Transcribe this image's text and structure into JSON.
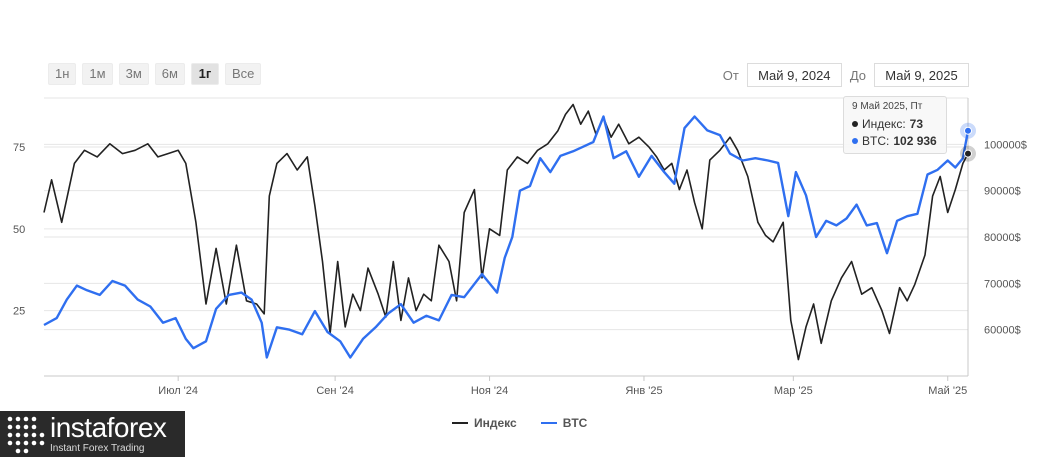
{
  "range_buttons": [
    {
      "label": "1н",
      "active": false
    },
    {
      "label": "1м",
      "active": false
    },
    {
      "label": "3м",
      "active": false
    },
    {
      "label": "6м",
      "active": false
    },
    {
      "label": "1г",
      "active": true
    },
    {
      "label": "Все",
      "active": false
    }
  ],
  "date_range": {
    "from_label": "От",
    "from_value": "Май 9, 2024",
    "to_label": "До",
    "to_value": "Май 9, 2025"
  },
  "tooltip": {
    "date": "9 Май 2025, Пт",
    "index_label": "Индекс:",
    "index_value": "73",
    "btc_label": "BTC:",
    "btc_value": "102 936"
  },
  "legend": {
    "index": "Индекс",
    "btc": "BTC"
  },
  "logo": {
    "name": "instaforex",
    "tagline": "Instant Forex Trading"
  },
  "colors": {
    "index": "#222222",
    "btc": "#2f6ff0",
    "grid": "#e6e6e6"
  },
  "chart_data": {
    "type": "line",
    "x_start": "2024-05-09",
    "x_end": "2025-05-09",
    "x_ticks": [
      {
        "date": "2024-07-01",
        "label": "Июл '24"
      },
      {
        "date": "2024-09-01",
        "label": "Сен '24"
      },
      {
        "date": "2024-11-01",
        "label": "Ноя '24"
      },
      {
        "date": "2025-01-01",
        "label": "Янв '25"
      },
      {
        "date": "2025-03-01",
        "label": "Мар '25"
      },
      {
        "date": "2025-05-01",
        "label": "Май '25"
      }
    ],
    "left_axis": {
      "ticks": [
        25,
        50,
        75
      ],
      "range": [
        5,
        90
      ]
    },
    "right_axis": {
      "ticks": [
        60000,
        70000,
        80000,
        90000,
        100000
      ],
      "labels": [
        "60000$",
        "70000$",
        "80000$",
        "90000$",
        "100000$"
      ],
      "range": [
        50000,
        110000
      ]
    },
    "grid": true,
    "legend_position": "bottom-center",
    "series": [
      {
        "name": "Индекс",
        "axis": "left",
        "points": [
          [
            "2024-05-09",
            55
          ],
          [
            "2024-05-12",
            65
          ],
          [
            "2024-05-16",
            52
          ],
          [
            "2024-05-21",
            70
          ],
          [
            "2024-05-25",
            74
          ],
          [
            "2024-05-30",
            72
          ],
          [
            "2024-06-04",
            76
          ],
          [
            "2024-06-09",
            73
          ],
          [
            "2024-06-14",
            74
          ],
          [
            "2024-06-19",
            76
          ],
          [
            "2024-06-23",
            72
          ],
          [
            "2024-06-27",
            73
          ],
          [
            "2024-07-01",
            74
          ],
          [
            "2024-07-04",
            70
          ],
          [
            "2024-07-08",
            52
          ],
          [
            "2024-07-12",
            27
          ],
          [
            "2024-07-16",
            44
          ],
          [
            "2024-07-20",
            27
          ],
          [
            "2024-07-24",
            45
          ],
          [
            "2024-07-28",
            28
          ],
          [
            "2024-08-01",
            27
          ],
          [
            "2024-08-04",
            24
          ],
          [
            "2024-08-06",
            60
          ],
          [
            "2024-08-09",
            70
          ],
          [
            "2024-08-13",
            73
          ],
          [
            "2024-08-17",
            68
          ],
          [
            "2024-08-21",
            72
          ],
          [
            "2024-08-24",
            57
          ],
          [
            "2024-08-27",
            40
          ],
          [
            "2024-08-30",
            18
          ],
          [
            "2024-09-02",
            40
          ],
          [
            "2024-09-05",
            20
          ],
          [
            "2024-09-08",
            30
          ],
          [
            "2024-09-11",
            25
          ],
          [
            "2024-09-14",
            38
          ],
          [
            "2024-09-18",
            30
          ],
          [
            "2024-09-21",
            23
          ],
          [
            "2024-09-24",
            40
          ],
          [
            "2024-09-27",
            22
          ],
          [
            "2024-09-30",
            35
          ],
          [
            "2024-10-03",
            25
          ],
          [
            "2024-10-06",
            30
          ],
          [
            "2024-10-09",
            28
          ],
          [
            "2024-10-12",
            45
          ],
          [
            "2024-10-16",
            40
          ],
          [
            "2024-10-19",
            28
          ],
          [
            "2024-10-22",
            55
          ],
          [
            "2024-10-26",
            62
          ],
          [
            "2024-10-29",
            35
          ],
          [
            "2024-11-01",
            50
          ],
          [
            "2024-11-05",
            48
          ],
          [
            "2024-11-08",
            68
          ],
          [
            "2024-11-12",
            72
          ],
          [
            "2024-11-16",
            70
          ],
          [
            "2024-11-20",
            74
          ],
          [
            "2024-11-24",
            76
          ],
          [
            "2024-11-28",
            80
          ],
          [
            "2024-12-01",
            85
          ],
          [
            "2024-12-04",
            88
          ],
          [
            "2024-12-07",
            82
          ],
          [
            "2024-12-10",
            86
          ],
          [
            "2024-12-13",
            79
          ],
          [
            "2024-12-16",
            84
          ],
          [
            "2024-12-19",
            78
          ],
          [
            "2024-12-22",
            82
          ],
          [
            "2024-12-26",
            76
          ],
          [
            "2024-12-30",
            78
          ],
          [
            "2025-01-03",
            75
          ],
          [
            "2025-01-06",
            72
          ],
          [
            "2025-01-09",
            68
          ],
          [
            "2025-01-12",
            70
          ],
          [
            "2025-01-15",
            62
          ],
          [
            "2025-01-18",
            68
          ],
          [
            "2025-01-21",
            58
          ],
          [
            "2025-01-24",
            50
          ],
          [
            "2025-01-27",
            71
          ],
          [
            "2025-01-31",
            74
          ],
          [
            "2025-02-04",
            78
          ],
          [
            "2025-02-07",
            74
          ],
          [
            "2025-02-11",
            66
          ],
          [
            "2025-02-15",
            52
          ],
          [
            "2025-02-18",
            48
          ],
          [
            "2025-02-21",
            46
          ],
          [
            "2025-02-25",
            52
          ],
          [
            "2025-02-28",
            22
          ],
          [
            "2025-03-03",
            10
          ],
          [
            "2025-03-06",
            20
          ],
          [
            "2025-03-09",
            27
          ],
          [
            "2025-03-12",
            15
          ],
          [
            "2025-03-16",
            28
          ],
          [
            "2025-03-20",
            35
          ],
          [
            "2025-03-24",
            40
          ],
          [
            "2025-03-28",
            30
          ],
          [
            "2025-04-01",
            32
          ],
          [
            "2025-04-05",
            25
          ],
          [
            "2025-04-08",
            18
          ],
          [
            "2025-04-12",
            32
          ],
          [
            "2025-04-15",
            28
          ],
          [
            "2025-04-18",
            33
          ],
          [
            "2025-04-22",
            42
          ],
          [
            "2025-04-25",
            60
          ],
          [
            "2025-04-28",
            66
          ],
          [
            "2025-05-01",
            55
          ],
          [
            "2025-05-04",
            62
          ],
          [
            "2025-05-07",
            70
          ],
          [
            "2025-05-09",
            73
          ]
        ]
      },
      {
        "name": "BTC",
        "axis": "right",
        "points": [
          [
            "2024-05-09",
            61000
          ],
          [
            "2024-05-14",
            62500
          ],
          [
            "2024-05-18",
            66500
          ],
          [
            "2024-05-22",
            69500
          ],
          [
            "2024-05-26",
            68500
          ],
          [
            "2024-05-31",
            67500
          ],
          [
            "2024-06-05",
            70500
          ],
          [
            "2024-06-10",
            69500
          ],
          [
            "2024-06-15",
            66500
          ],
          [
            "2024-06-20",
            65000
          ],
          [
            "2024-06-25",
            61500
          ],
          [
            "2024-06-30",
            62500
          ],
          [
            "2024-07-04",
            58000
          ],
          [
            "2024-07-07",
            56000
          ],
          [
            "2024-07-12",
            57500
          ],
          [
            "2024-07-16",
            64500
          ],
          [
            "2024-07-21",
            67500
          ],
          [
            "2024-07-26",
            68000
          ],
          [
            "2024-07-30",
            66500
          ],
          [
            "2024-08-03",
            61500
          ],
          [
            "2024-08-05",
            54000
          ],
          [
            "2024-08-09",
            60500
          ],
          [
            "2024-08-14",
            60000
          ],
          [
            "2024-08-19",
            59000
          ],
          [
            "2024-08-24",
            64000
          ],
          [
            "2024-08-29",
            59500
          ],
          [
            "2024-09-03",
            57500
          ],
          [
            "2024-09-07",
            54000
          ],
          [
            "2024-09-12",
            58000
          ],
          [
            "2024-09-17",
            60500
          ],
          [
            "2024-09-22",
            63500
          ],
          [
            "2024-09-27",
            65500
          ],
          [
            "2024-10-02",
            61500
          ],
          [
            "2024-10-07",
            63000
          ],
          [
            "2024-10-12",
            62000
          ],
          [
            "2024-10-17",
            67500
          ],
          [
            "2024-10-22",
            67000
          ],
          [
            "2024-10-29",
            72000
          ],
          [
            "2024-11-04",
            68000
          ],
          [
            "2024-11-07",
            75500
          ],
          [
            "2024-11-10",
            80000
          ],
          [
            "2024-11-13",
            90000
          ],
          [
            "2024-11-17",
            91000
          ],
          [
            "2024-11-21",
            97000
          ],
          [
            "2024-11-25",
            94000
          ],
          [
            "2024-11-29",
            97500
          ],
          [
            "2024-12-04",
            98500
          ],
          [
            "2024-12-08",
            99500
          ],
          [
            "2024-12-12",
            100500
          ],
          [
            "2024-12-16",
            106000
          ],
          [
            "2024-12-20",
            97000
          ],
          [
            "2024-12-25",
            98500
          ],
          [
            "2024-12-30",
            93000
          ],
          [
            "2025-01-04",
            97500
          ],
          [
            "2025-01-09",
            94000
          ],
          [
            "2025-01-13",
            91500
          ],
          [
            "2025-01-17",
            103500
          ],
          [
            "2025-01-21",
            106000
          ],
          [
            "2025-01-26",
            103000
          ],
          [
            "2025-01-31",
            102000
          ],
          [
            "2025-02-04",
            98000
          ],
          [
            "2025-02-09",
            96500
          ],
          [
            "2025-02-14",
            97000
          ],
          [
            "2025-02-19",
            96500
          ],
          [
            "2025-02-23",
            96000
          ],
          [
            "2025-02-27",
            84500
          ],
          [
            "2025-03-02",
            94000
          ],
          [
            "2025-03-06",
            89000
          ],
          [
            "2025-03-10",
            80000
          ],
          [
            "2025-03-14",
            83500
          ],
          [
            "2025-03-18",
            82500
          ],
          [
            "2025-03-22",
            84000
          ],
          [
            "2025-03-26",
            87000
          ],
          [
            "2025-03-30",
            82500
          ],
          [
            "2025-04-03",
            83000
          ],
          [
            "2025-04-07",
            76500
          ],
          [
            "2025-04-11",
            83500
          ],
          [
            "2025-04-15",
            84500
          ],
          [
            "2025-04-19",
            85000
          ],
          [
            "2025-04-23",
            93500
          ],
          [
            "2025-04-27",
            94500
          ],
          [
            "2025-05-01",
            96500
          ],
          [
            "2025-05-04",
            95000
          ],
          [
            "2025-05-07",
            97000
          ],
          [
            "2025-05-09",
            102936
          ]
        ]
      }
    ]
  }
}
